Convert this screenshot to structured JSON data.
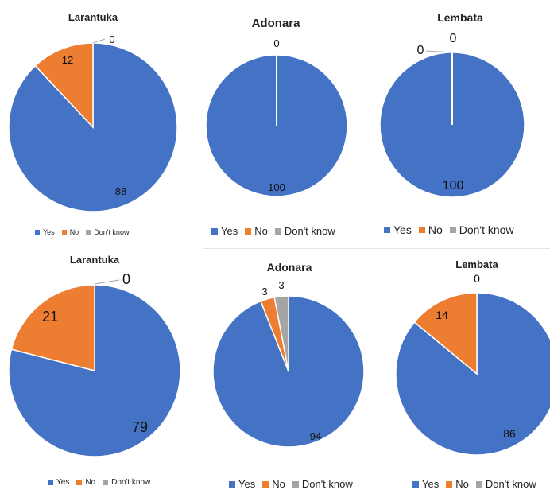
{
  "colors": {
    "yes": "#4472C4",
    "no": "#ED7D31",
    "dont_know": "#A5A5A5"
  },
  "legend": [
    "Yes",
    "No",
    "Don't know"
  ],
  "chart_data": [
    {
      "type": "pie",
      "title": "Larantuka",
      "categories": [
        "Yes",
        "No",
        "Don't know"
      ],
      "values": [
        88,
        12,
        0
      ],
      "legend_position": "bottom"
    },
    {
      "type": "pie",
      "title": "Adonara",
      "categories": [
        "Yes",
        "No",
        "Don't know"
      ],
      "values": [
        100,
        0,
        0
      ],
      "legend_position": "bottom"
    },
    {
      "type": "pie",
      "title": "Lembata",
      "categories": [
        "Yes",
        "No",
        "Don't know"
      ],
      "values": [
        100,
        0,
        0
      ],
      "legend_position": "bottom"
    },
    {
      "type": "pie",
      "title": "Larantuka",
      "categories": [
        "Yes",
        "No",
        "Don't know"
      ],
      "values": [
        79,
        21,
        0
      ],
      "legend_position": "bottom"
    },
    {
      "type": "pie",
      "title": "Adonara",
      "categories": [
        "Yes",
        "No",
        "Don't know"
      ],
      "values": [
        94,
        3,
        3
      ],
      "legend_position": "bottom"
    },
    {
      "type": "pie",
      "title": "Lembata",
      "categories": [
        "Yes",
        "No",
        "Don't know"
      ],
      "values": [
        86,
        14,
        0
      ],
      "legend_position": "bottom"
    }
  ]
}
